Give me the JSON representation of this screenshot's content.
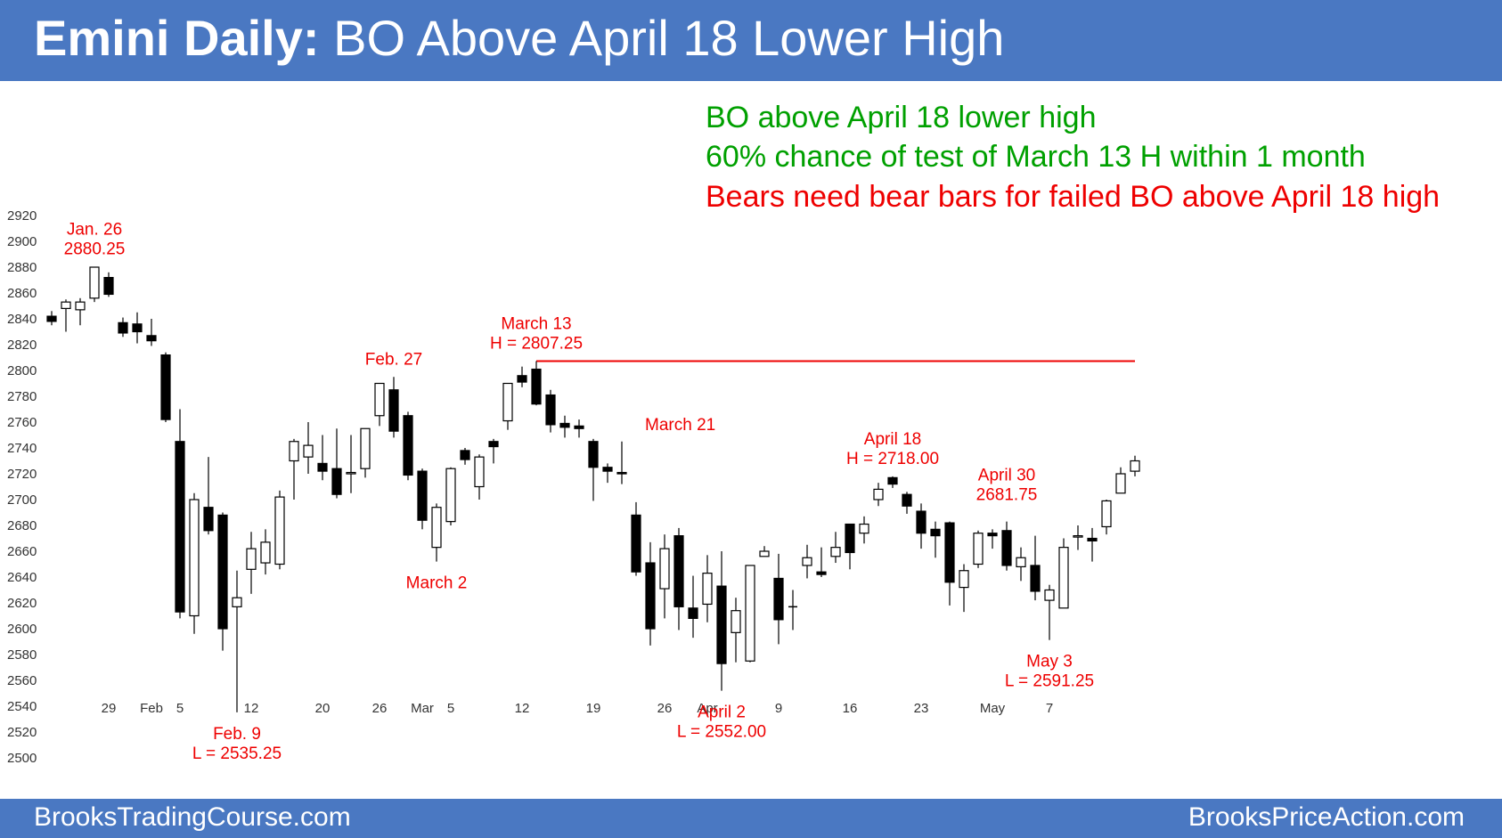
{
  "header": {
    "title_bold": "Emini Daily:",
    "title_rest": "BO Above April 18 Lower High"
  },
  "notes": [
    {
      "text": "BO above April 18 lower high",
      "color": "#00a000"
    },
    {
      "text": "60% chance of test of March 13 H within 1 month",
      "color": "#00a000"
    },
    {
      "text": "Bears need bear bars for failed BO above April 18 high",
      "color": "#ee0000"
    }
  ],
  "footer": {
    "left": "BrooksTradingCourse.com",
    "right": "BrooksPriceAction.com"
  },
  "colors": {
    "header_bg": "#4a78c2",
    "annotation": "#ee0000",
    "resistance_line": "#ee0000",
    "bear_body": "#000000",
    "bull_body": "#ffffff"
  },
  "chart_data": {
    "type": "candlestick",
    "title": "",
    "xlabel": "",
    "ylabel": "",
    "ylim": [
      2500,
      2920
    ],
    "y_ticks": [
      2920,
      2900,
      2880,
      2860,
      2840,
      2820,
      2800,
      2780,
      2760,
      2740,
      2720,
      2700,
      2680,
      2660,
      2640,
      2620,
      2600,
      2580,
      2560,
      2540,
      2520,
      2500
    ],
    "x_ticks": [
      {
        "bar": 4,
        "label": "29"
      },
      {
        "bar": 7,
        "label": "Feb"
      },
      {
        "bar": 9,
        "label": "5"
      },
      {
        "bar": 14,
        "label": "12"
      },
      {
        "bar": 19,
        "label": "20"
      },
      {
        "bar": 23,
        "label": "26"
      },
      {
        "bar": 26,
        "label": "Mar"
      },
      {
        "bar": 28,
        "label": "5"
      },
      {
        "bar": 33,
        "label": "12"
      },
      {
        "bar": 38,
        "label": "19"
      },
      {
        "bar": 43,
        "label": "26"
      },
      {
        "bar": 46,
        "label": "Apr"
      },
      {
        "bar": 51,
        "label": "9"
      },
      {
        "bar": 56,
        "label": "16"
      },
      {
        "bar": 61,
        "label": "23"
      },
      {
        "bar": 66,
        "label": "May"
      },
      {
        "bar": 70,
        "label": "7"
      }
    ],
    "candles": [
      [
        2842,
        2846,
        2835,
        2838
      ],
      [
        2848,
        2855,
        2830,
        2853
      ],
      [
        2847,
        2856,
        2835,
        2853
      ],
      [
        2856,
        2880,
        2853,
        2880
      ],
      [
        2872,
        2876,
        2857,
        2859
      ],
      [
        2837,
        2841,
        2826,
        2829
      ],
      [
        2836,
        2845,
        2821,
        2830
      ],
      [
        2827,
        2840,
        2819,
        2823
      ],
      [
        2812,
        2814,
        2760,
        2762
      ],
      [
        2745,
        2770,
        2608,
        2613
      ],
      [
        2610,
        2705,
        2596,
        2700
      ],
      [
        2694,
        2733,
        2673,
        2676
      ],
      [
        2688,
        2690,
        2583,
        2600
      ],
      [
        2617,
        2645,
        2535.25,
        2624
      ],
      [
        2646,
        2675,
        2627,
        2662
      ],
      [
        2651,
        2677,
        2642,
        2667
      ],
      [
        2650,
        2707,
        2646,
        2702
      ],
      [
        2730,
        2747,
        2700,
        2745
      ],
      [
        2733,
        2760,
        2720,
        2742
      ],
      [
        2728,
        2750,
        2715,
        2722
      ],
      [
        2724,
        2755,
        2701,
        2704
      ],
      [
        2720,
        2750,
        2705,
        2721
      ],
      [
        2724,
        2755,
        2717,
        2755
      ],
      [
        2765,
        2790,
        2757,
        2790
      ],
      [
        2785,
        2795,
        2748,
        2753
      ],
      [
        2765,
        2768,
        2715,
        2719
      ],
      [
        2722,
        2724,
        2677,
        2684
      ],
      [
        2663,
        2697,
        2652,
        2694
      ],
      [
        2683,
        2725,
        2680,
        2724
      ],
      [
        2738,
        2740,
        2727,
        2731
      ],
      [
        2710,
        2735,
        2700,
        2733
      ],
      [
        2745,
        2747,
        2728,
        2741
      ],
      [
        2761,
        2790,
        2754,
        2790
      ],
      [
        2796,
        2803,
        2787,
        2791
      ],
      [
        2801,
        2807.25,
        2773,
        2774
      ],
      [
        2781,
        2785,
        2752,
        2758
      ],
      [
        2759,
        2765,
        2748,
        2756
      ],
      [
        2757,
        2762,
        2748,
        2755
      ],
      [
        2745,
        2747,
        2699,
        2725
      ],
      [
        2725,
        2728,
        2713,
        2722
      ],
      [
        2721,
        2745,
        2712,
        2720
      ],
      [
        2688,
        2698,
        2641,
        2644
      ],
      [
        2651,
        2667,
        2587,
        2600
      ],
      [
        2631,
        2673,
        2608,
        2662
      ],
      [
        2672,
        2678,
        2599,
        2617
      ],
      [
        2616,
        2641,
        2593,
        2608
      ],
      [
        2619,
        2657,
        2605,
        2643
      ],
      [
        2633,
        2660,
        2552,
        2573
      ],
      [
        2597,
        2624,
        2574,
        2614
      ],
      [
        2575,
        2649,
        2574,
        2649
      ],
      [
        2656,
        2664,
        2656,
        2660
      ],
      [
        2639,
        2658,
        2588,
        2607
      ],
      [
        2617,
        2630,
        2599,
        2617
      ],
      [
        2649,
        2665,
        2639,
        2655
      ],
      [
        2644,
        2663,
        2640,
        2642
      ],
      [
        2656,
        2675,
        2651,
        2663
      ],
      [
        2681,
        2680,
        2646,
        2659
      ],
      [
        2674,
        2687,
        2666,
        2681
      ],
      [
        2700,
        2713,
        2695,
        2708
      ],
      [
        2717,
        2718,
        2709,
        2712
      ],
      [
        2704,
        2706,
        2689,
        2695
      ],
      [
        2691,
        2697,
        2662,
        2674
      ],
      [
        2677,
        2683,
        2655,
        2672
      ],
      [
        2682,
        2683,
        2618,
        2636
      ],
      [
        2632,
        2650,
        2613,
        2645
      ],
      [
        2650,
        2676,
        2647,
        2674
      ],
      [
        2674,
        2677,
        2662,
        2672
      ],
      [
        2676,
        2683,
        2645,
        2649
      ],
      [
        2648,
        2663,
        2637,
        2655
      ],
      [
        2649,
        2672,
        2622,
        2629
      ],
      [
        2622,
        2634,
        2591.25,
        2630
      ],
      [
        2616,
        2670,
        2616,
        2663
      ],
      [
        2671,
        2680,
        2661,
        2672
      ],
      [
        2670,
        2678,
        2652,
        2668
      ],
      [
        2679,
        2700,
        2673,
        2699
      ],
      [
        2705,
        2725,
        2705,
        2720
      ],
      [
        2722,
        2734,
        2718,
        2730
      ]
    ],
    "hlines": [
      {
        "value": 2807.25,
        "from_bar": 34,
        "to_bar": 76
      }
    ],
    "annotations": [
      {
        "lines": [
          "Jan. 26",
          "2880.25"
        ],
        "bar": 3,
        "value": 2880.25,
        "pos": "above"
      },
      {
        "lines": [
          "Feb. 9",
          "L = 2535.25"
        ],
        "bar": 13,
        "value": 2535.25,
        "pos": "below"
      },
      {
        "lines": [
          "Feb. 27"
        ],
        "bar": 24,
        "value": 2795,
        "pos": "above"
      },
      {
        "lines": [
          "March 2"
        ],
        "bar": 27,
        "value": 2652,
        "pos": "below"
      },
      {
        "lines": [
          "March 13",
          "H = 2807.25"
        ],
        "bar": 34,
        "value": 2807.25,
        "pos": "above"
      },
      {
        "lines": [
          "March 21"
        ],
        "bar": 41,
        "value": 2751,
        "pos": "above-right"
      },
      {
        "lines": [
          "April 2",
          "L = 2552.00"
        ],
        "bar": 47,
        "value": 2552,
        "pos": "below"
      },
      {
        "lines": [
          "April 18",
          "H = 2718.00"
        ],
        "bar": 59,
        "value": 2718,
        "pos": "above"
      },
      {
        "lines": [
          "April 30",
          "2681.75"
        ],
        "bar": 67,
        "value": 2690,
        "pos": "above"
      },
      {
        "lines": [
          "May 3",
          "L = 2591.25"
        ],
        "bar": 70,
        "value": 2591.25,
        "pos": "below"
      }
    ]
  }
}
